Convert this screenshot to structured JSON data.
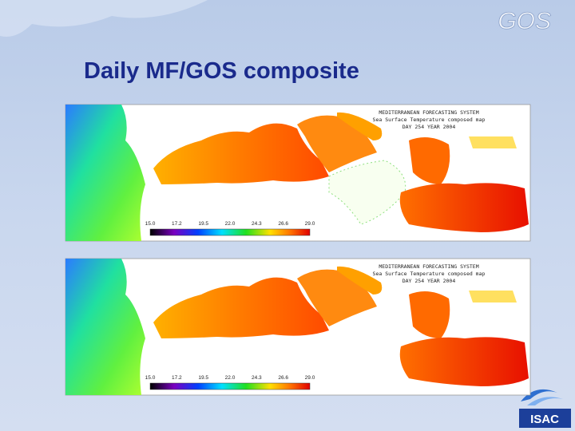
{
  "header": {
    "title": "Daily MF/GOS composite",
    "logo": "GOS"
  },
  "footer": {
    "logo": "ISAC"
  },
  "maps": [
    {
      "lines": [
        "MEDITERRANEAN FORECASTING SYSTEM",
        "Sea Surface Temperature composed map",
        "DAY 254 YEAR 2004"
      ],
      "colorbar": [
        "15.0",
        "17.2",
        "19.5",
        "22.0",
        "24.3",
        "26.6",
        "29.0"
      ]
    },
    {
      "lines": [
        "MEDITERRANEAN FORECASTING SYSTEM",
        "Sea Surface Temperature composed map",
        "DAY 254 YEAR 2004"
      ],
      "colorbar": [
        "15.0",
        "17.2",
        "19.5",
        "22.0",
        "24.3",
        "26.6",
        "29.0"
      ]
    }
  ]
}
